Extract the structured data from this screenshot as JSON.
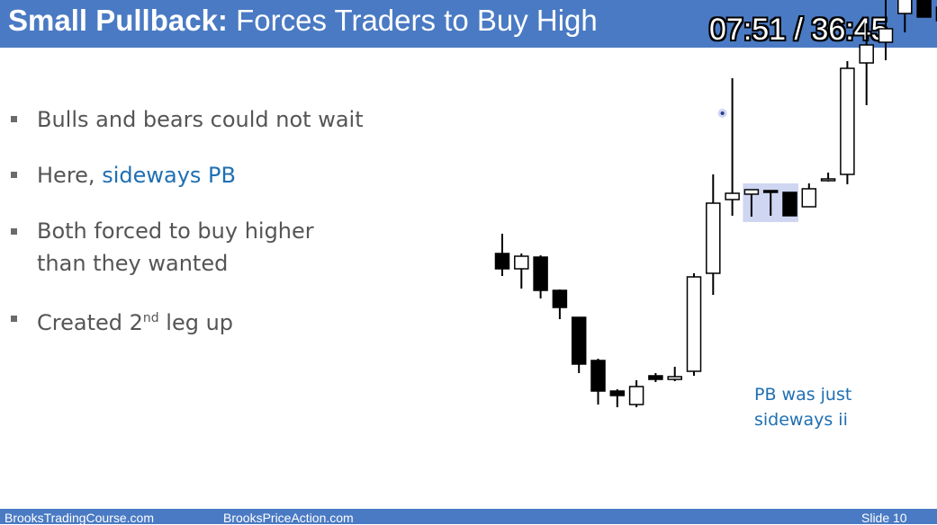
{
  "slide": {
    "title_bold": "Small Pullback:",
    "title_rest": " Forces Traders to Buy High",
    "timer": "07:51 / 36:45"
  },
  "bullets": [
    {
      "text": "Bulls and bears could  not wait"
    },
    {
      "prefix": "Here, ",
      "highlight": "sideways PB"
    },
    {
      "line1": "Both forced to buy higher",
      "line2": "than they wanted"
    },
    {
      "pre": "Created 2",
      "sup": "nd",
      "post": " leg up"
    }
  ],
  "annotation": {
    "line1": "PB was just",
    "line2": "sideways ii"
  },
  "footer": {
    "left": "BrooksTradingCourse.com",
    "center": "BrooksPriceAction.com",
    "right": "Slide  10"
  },
  "colors": {
    "header": "#4a7ac3",
    "highlight_text": "#1f6fb2",
    "highlight_box": "#c5cff0"
  },
  "chart_data": {
    "type": "candlestick",
    "note": "price values in arbitrary chart units (no price axis shown)",
    "candles": [
      {
        "o": 318,
        "h": 340,
        "l": 293,
        "c": 301
      },
      {
        "o": 301,
        "h": 318,
        "l": 279,
        "c": 315
      },
      {
        "o": 314,
        "h": 316,
        "l": 268,
        "c": 277
      },
      {
        "o": 277,
        "h": 278,
        "l": 245,
        "c": 258
      },
      {
        "o": 247,
        "h": 247,
        "l": 185,
        "c": 195
      },
      {
        "o": 199,
        "h": 201,
        "l": 150,
        "c": 165
      },
      {
        "o": 165,
        "h": 167,
        "l": 147,
        "c": 160
      },
      {
        "o": 150,
        "h": 177,
        "l": 147,
        "c": 170
      },
      {
        "o": 182,
        "h": 185,
        "l": 175,
        "c": 178
      },
      {
        "o": 178,
        "h": 192,
        "l": 176,
        "c": 181
      },
      {
        "o": 187,
        "h": 296,
        "l": 182,
        "c": 292
      },
      {
        "o": 296,
        "h": 406,
        "l": 272,
        "c": 374
      },
      {
        "o": 378,
        "h": 513,
        "l": 360,
        "c": 385
      },
      {
        "o": 384,
        "h": 388,
        "l": 359,
        "c": 389
      },
      {
        "o": 388,
        "h": 388,
        "l": 360,
        "c": 386
      },
      {
        "o": 386,
        "h": 386,
        "l": 360,
        "c": 360
      },
      {
        "o": 370,
        "h": 396,
        "l": 370,
        "c": 390
      },
      {
        "o": 401,
        "h": 408,
        "l": 398,
        "c": 401
      },
      {
        "o": 406,
        "h": 532,
        "l": 395,
        "c": 524
      },
      {
        "o": 530,
        "h": 574,
        "l": 483,
        "c": 550
      },
      {
        "o": 553,
        "h": 606,
        "l": 533,
        "c": 568
      },
      {
        "o": 585,
        "h": 664,
        "l": 564,
        "c": 625
      },
      {
        "o": 622,
        "h": 622,
        "l": 582,
        "c": 581
      },
      {
        "o": 592,
        "h": 598,
        "l": 528,
        "c": 577
      }
    ],
    "highlight_range": [
      13,
      15
    ],
    "marker_near_candle": 12
  }
}
